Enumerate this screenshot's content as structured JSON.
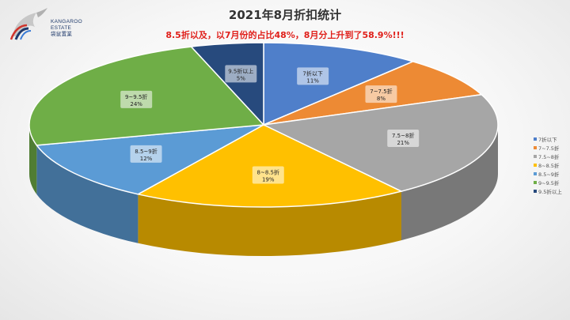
{
  "logo": {
    "line1": "KANGAROO",
    "line2": "ESTATE",
    "line3": "袋鼠置業"
  },
  "chart_data": {
    "type": "pie",
    "title": "2021年8月折扣统计",
    "subtitle": "8.5折以及，以7月份的占比48%，8月分上升到了58.9%!!!",
    "three_d": true,
    "legend_position": "right",
    "slices": [
      {
        "name": "7折以下",
        "percent": 11,
        "label": "11%",
        "color": "#4f7fca"
      },
      {
        "name": "7~7.5折",
        "percent": 8,
        "label": "8%",
        "color": "#ed8a34"
      },
      {
        "name": "7.5~8折",
        "percent": 21,
        "label": "21%",
        "color": "#a6a6a6"
      },
      {
        "name": "8~8.5折",
        "percent": 19,
        "label": "19%",
        "color": "#ffc000"
      },
      {
        "name": "8.5~9折",
        "percent": 12,
        "label": "12%",
        "color": "#5b9bd5"
      },
      {
        "name": "9~9.5折",
        "percent": 24,
        "label": "24%",
        "color": "#6fae47"
      },
      {
        "name": "9.5折以上",
        "percent": 5,
        "label": "5%",
        "color": "#274a7d"
      }
    ]
  }
}
